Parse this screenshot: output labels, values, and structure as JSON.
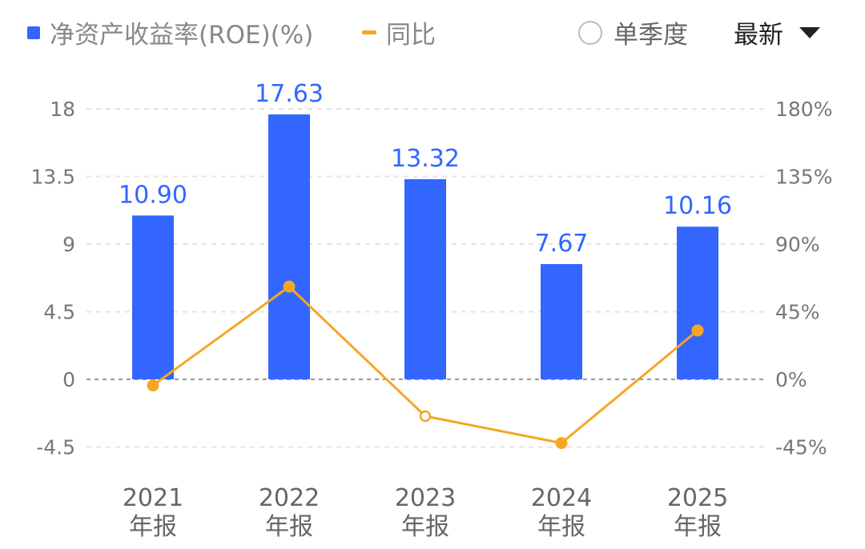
{
  "legend": {
    "bar_series": "净资产收益率(ROE)(%)",
    "line_series": "同比"
  },
  "controls": {
    "quarter_toggle_label": "单季度",
    "period_select_value": "最新"
  },
  "colors": {
    "bar": "#3366FF",
    "line": "#F5A623",
    "grid": "#e3e3e3",
    "zero_line": "#999999"
  },
  "chart_data": {
    "type": "bar",
    "categories": [
      "2021",
      "2022",
      "2023",
      "2024",
      "2025"
    ],
    "category_suffix": "年报",
    "series": [
      {
        "name": "净资产收益率(ROE)(%)",
        "type": "bar",
        "axis": "left",
        "values": [
          10.9,
          17.63,
          13.32,
          7.67,
          10.16
        ],
        "labels": [
          "10.90",
          "17.63",
          "13.32",
          "7.67",
          "10.16"
        ]
      },
      {
        "name": "同比",
        "type": "line",
        "axis": "right",
        "values": [
          -4,
          61.7,
          -24.5,
          -42.4,
          32.5
        ],
        "hollow_markers": [
          false,
          false,
          true,
          false,
          false
        ]
      }
    ],
    "y_left": {
      "ticks": [
        18,
        13.5,
        9,
        4.5,
        0,
        -4.5
      ],
      "tick_labels": [
        "18",
        "13.5",
        "9",
        "4.5",
        "0",
        "-4.5"
      ]
    },
    "y_right": {
      "ticks": [
        180,
        135,
        90,
        45,
        0,
        -45
      ],
      "tick_labels": [
        "180%",
        "135%",
        "90%",
        "45%",
        "0%",
        "-45%"
      ]
    },
    "grid": true
  }
}
